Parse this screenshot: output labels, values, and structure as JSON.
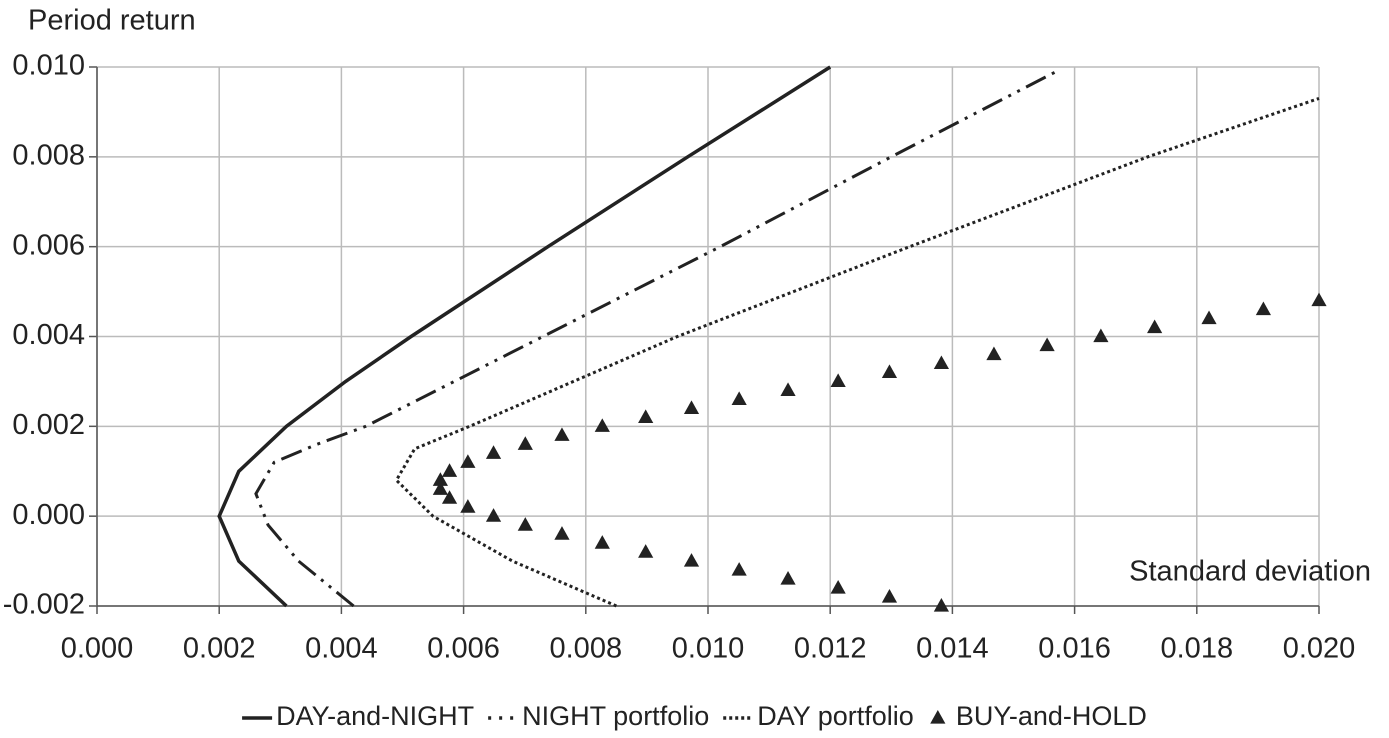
{
  "chart_data": {
    "type": "line",
    "y_label": "Period return",
    "x_label": "Standard deviation",
    "xlim": [
      0,
      0.02
    ],
    "ylim": [
      -0.002,
      0.01
    ],
    "xticks": [
      {
        "value": 0,
        "label": "0.000"
      },
      0.002,
      0.004,
      0.006,
      0.008,
      {
        "value": 0.01,
        "label": "0.010"
      },
      0.012,
      0.014,
      0.016,
      0.018,
      {
        "value": 0.02,
        "label": "0.020"
      }
    ],
    "yticks": [
      -0.002,
      {
        "value": 0,
        "label": "0.000"
      },
      0.002,
      0.004,
      0.006,
      0.008,
      {
        "value": 0.01,
        "label": "0.010"
      }
    ],
    "grid": true,
    "legend": "bottom",
    "series": [
      {
        "name": "DAY-and-NIGHT",
        "color": "#222222",
        "style": "solid",
        "x": [
          0.0031,
          0.00232,
          0.002,
          0.00232,
          0.0031,
          0.00407,
          0.00514,
          0.00738,
          0.00967,
          0.012
        ],
        "values": [
          -0.002,
          -0.001,
          0,
          0.001,
          0.002,
          0.003,
          0.004,
          0.006,
          0.008,
          0.01
        ]
      },
      {
        "name": "NIGHT portfolio",
        "color": "#222222",
        "style": "dash-dot-dot",
        "x": [
          0.0042,
          0.0033,
          0.0028,
          0.0026,
          0.0029,
          0.0036,
          0.0044,
          0.0073,
          0.0102,
          0.013,
          0.0157
        ],
        "values": [
          -0.002,
          -0.001,
          -0.0002,
          0.0005,
          0.0012,
          0.0016,
          0.002,
          0.004,
          0.006,
          0.008,
          0.0099
        ]
      },
      {
        "name": "DAY portfolio",
        "color": "#222222",
        "style": "dotted",
        "x": [
          0.0085,
          0.0068,
          0.0055,
          0.0049,
          0.0052,
          0.0061,
          0.0095,
          0.0133,
          0.0172,
          0.02
        ],
        "values": [
          -0.002,
          -0.001,
          0,
          0.0008,
          0.0015,
          0.002,
          0.004,
          0.006,
          0.008,
          0.0093
        ]
      },
      {
        "name": "BUY-and-HOLD",
        "color": "#222222",
        "style": "triangles",
        "x": [
          0.01382,
          0.01297,
          0.01213,
          0.01131,
          0.01051,
          0.00973,
          0.00898,
          0.00827,
          0.00761,
          0.00701,
          0.00649,
          0.00607,
          0.00577,
          0.00562,
          0.00562,
          0.00577,
          0.00607,
          0.00649,
          0.00701,
          0.00761,
          0.00827,
          0.00898,
          0.00973,
          0.01051,
          0.01131,
          0.01213,
          0.01297,
          0.01382,
          0.01468,
          0.01555,
          0.01643,
          0.01731,
          0.0182,
          0.01909,
          0.02
        ],
        "values": [
          -0.002,
          -0.0018,
          -0.0016,
          -0.0014,
          -0.0012,
          -0.001,
          -0.0008,
          -0.0006,
          -0.0004,
          -0.0002,
          0,
          0.0002,
          0.0004,
          0.0006,
          0.0008,
          0.001,
          0.0012,
          0.0014,
          0.0016,
          0.0018,
          0.002,
          0.0022,
          0.0024,
          0.0026,
          0.0028,
          0.003,
          0.0032,
          0.0034,
          0.0036,
          0.0038,
          0.004,
          0.0042,
          0.0044,
          0.0046,
          0.0048
        ]
      }
    ]
  }
}
